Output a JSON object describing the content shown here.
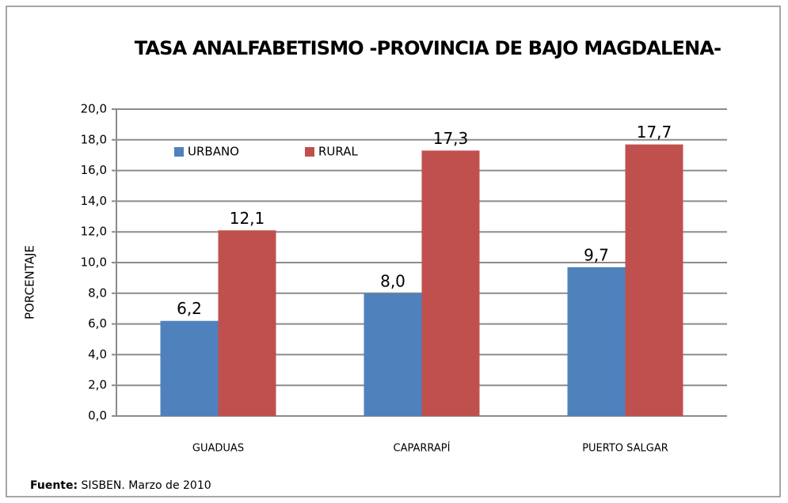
{
  "chart_data": {
    "type": "bar",
    "title": "TASA ANALFABETISMO -PROVINCIA DE BAJO MAGDALENA-",
    "y_label": "PORCENTAJE",
    "categories": [
      "GUADUAS",
      "CAPARRAPÍ",
      "PUERTO SALGAR"
    ],
    "series": [
      {
        "name": "URBANO",
        "color": "#4f81bd",
        "values": [
          6.2,
          8.0,
          9.7
        ],
        "value_labels": [
          "6,2",
          "8,0",
          "9,7"
        ]
      },
      {
        "name": "RURAL",
        "color": "#c0504d",
        "values": [
          12.1,
          17.3,
          17.7
        ],
        "value_labels": [
          "12,1",
          "17,3",
          "17,7"
        ]
      }
    ],
    "ylim": [
      0,
      20
    ],
    "yticks": [
      {
        "value": 0,
        "label": "0,0"
      },
      {
        "value": 2,
        "label": "2,0"
      },
      {
        "value": 4,
        "label": "4,0"
      },
      {
        "value": 6,
        "label": "6,0"
      },
      {
        "value": 8,
        "label": "8,0"
      },
      {
        "value": 10,
        "label": "10,0"
      },
      {
        "value": 12,
        "label": "12,0"
      },
      {
        "value": 14,
        "label": "14,0"
      },
      {
        "value": 16,
        "label": "16,0"
      },
      {
        "value": 18,
        "label": "18,0"
      },
      {
        "value": 20,
        "label": "20,0"
      }
    ],
    "grid": true,
    "legend": "top-left",
    "source_label": "Fuente:",
    "source": "SISBEN. Marzo de 2010"
  }
}
